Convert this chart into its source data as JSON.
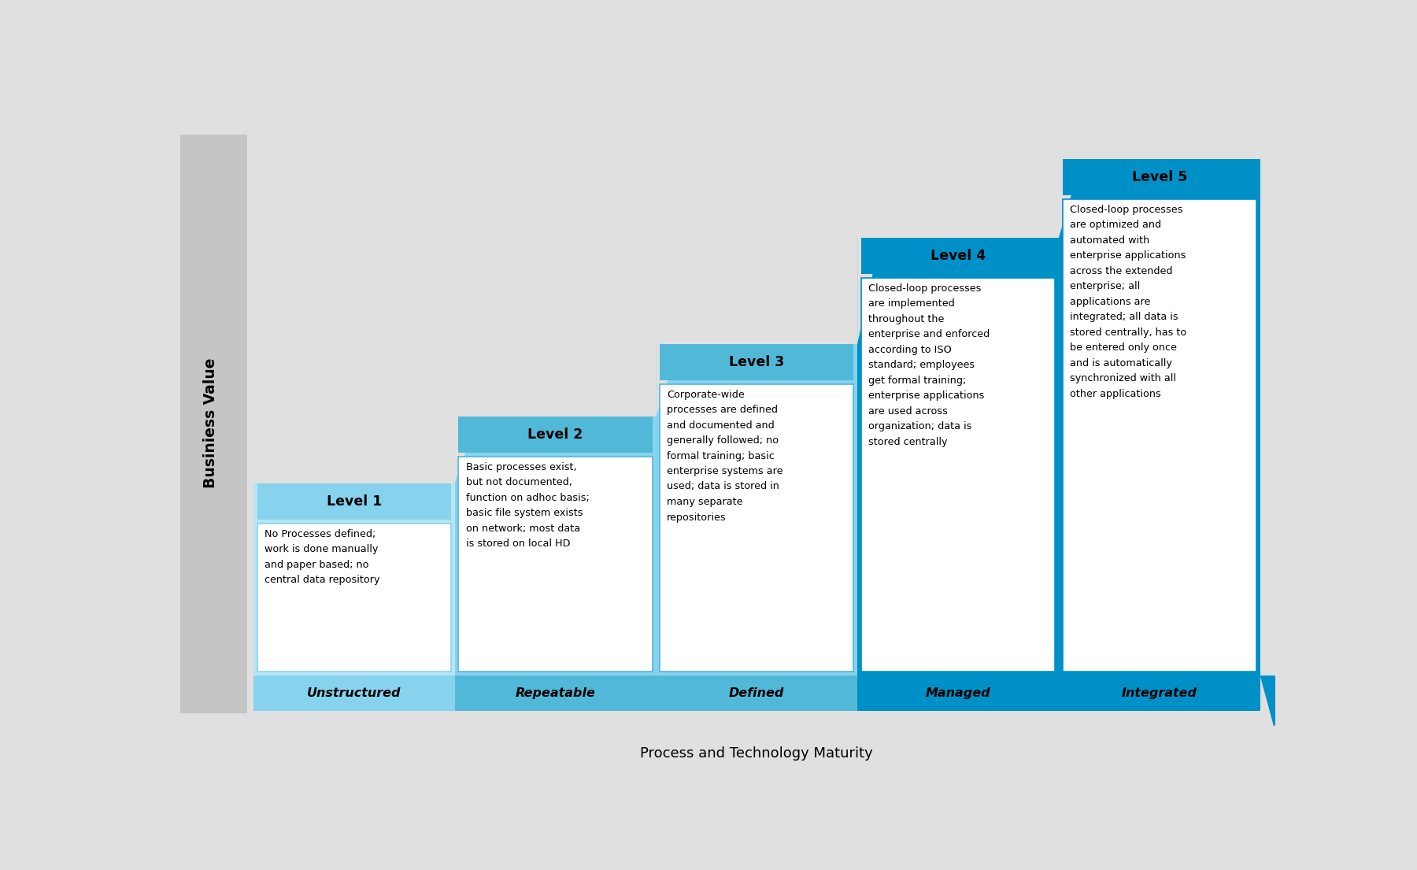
{
  "bg_color": "#e0e0e0",
  "x_label": "Process and Technology Maturity",
  "y_label": "Businiess Value",
  "gray_bar_color": "#c5c5c5",
  "levels": [
    {
      "number": 1,
      "title": "Level 1",
      "subtitle": "Unstructured",
      "description": "No Processes defined;\nwork is done manually\nand paper based; no\ncentral data repository",
      "header_color": "#87d3ed",
      "body_color": "#ffffff",
      "subtitle_bg": "#87d3ed",
      "light_bg": "#b8e4f5"
    },
    {
      "number": 2,
      "title": "Level 2",
      "subtitle": "Repeatable",
      "description": "Basic processes exist,\nbut not documented,\nfunction on adhoc basis;\nbasic file system exists\non network; most data\nis stored on local HD",
      "header_color": "#52b8d8",
      "body_color": "#ffffff",
      "subtitle_bg": "#52b8d8",
      "light_bg": "#87d3ed"
    },
    {
      "number": 3,
      "title": "Level 3",
      "subtitle": "Defined",
      "description": "Corporate-wide\nprocesses are defined\nand documented and\ngenerally followed; no\nformal training; basic\nenterprise systems are\nused; data is stored in\nmany separate\nrepositories",
      "header_color": "#52b8d8",
      "body_color": "#ffffff",
      "subtitle_bg": "#52b8d8",
      "light_bg": "#87d3ed"
    },
    {
      "number": 4,
      "title": "Level 4",
      "subtitle": "Managed",
      "description": "Closed-loop processes\nare implemented\nthroughout the\nenterprise and enforced\naccording to ISO\nstandard; employees\nget formal training;\nenterprise applications\nare used across\norganization; data is\nstored centrally",
      "header_color": "#0090c8",
      "body_color": "#ffffff",
      "subtitle_bg": "#0090c8",
      "light_bg": "#0090c8"
    },
    {
      "number": 5,
      "title": "Level 5",
      "subtitle": "Integrated",
      "description": "Closed-loop processes\nare optimized and\nautomated with\nenterprise applications\nacross the extended\nenterprise; all\napplications are\nintegrated; all data is\nstored centrally, has to\nbe entered only once\nand is automatically\nsynchronized with all\nother applications",
      "header_color": "#0090c8",
      "body_color": "#ffffff",
      "subtitle_bg": "#0090c8",
      "light_bg": "#0090c8"
    }
  ]
}
